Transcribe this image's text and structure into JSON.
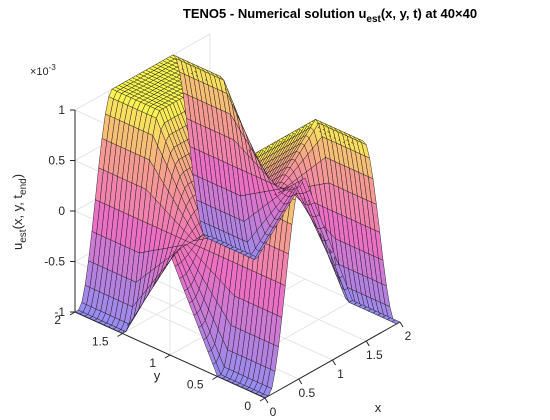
{
  "chart_data": {
    "type": "surface",
    "title": {
      "prefix": "TENO5 - Numerical solution u",
      "sub": "est",
      "suffix": "(x, y, t) at 40×40"
    },
    "zlabel": {
      "base": "u",
      "sub": "est",
      "mid": "(x, y, t",
      "sub2": "end",
      "end": ")"
    },
    "xlabel": "x",
    "ylabel": "y",
    "z_multiplier": "×10",
    "z_exponent": "-3",
    "x_ticks": [
      "0",
      "0.5",
      "1",
      "1.5",
      "2"
    ],
    "y_ticks": [
      "0",
      "0.5",
      "1",
      "1.5",
      "2"
    ],
    "z_ticks": [
      "-1",
      "-0.5",
      "0",
      "0.5",
      "1"
    ],
    "xlim": [
      0,
      2
    ],
    "ylim": [
      0,
      2
    ],
    "zlim": [
      -0.001,
      0.001
    ],
    "grid": true,
    "colormap": "spring (magenta to yellow)",
    "grid_size": [
      40,
      40
    ],
    "shape": "plateau ridge along x with a V-shaped trough near y = 1, values from -1e-3 to 1e-3"
  }
}
